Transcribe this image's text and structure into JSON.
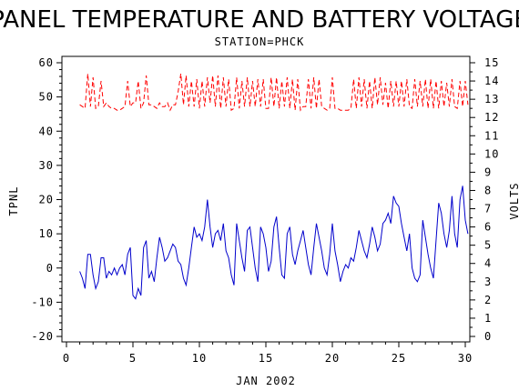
{
  "chart_data": {
    "type": "line",
    "title": "PANEL TEMPERATURE AND BATTERY VOLTAGE",
    "subtitle": "STATION=PHCK",
    "xlabel": "JAN 2002",
    "ylabel_left": "TPNL",
    "ylabel_right": "VOLTS",
    "xlim": [
      0,
      30
    ],
    "ylim_left": [
      -20,
      60
    ],
    "ylim_right": [
      0,
      15
    ],
    "xticks": [
      0,
      5,
      10,
      15,
      20,
      25,
      30
    ],
    "yticks_left": [
      -20,
      -10,
      0,
      10,
      20,
      30,
      40,
      50,
      60
    ],
    "yticks_right": [
      0,
      1,
      2,
      3,
      4,
      5,
      6,
      7,
      8,
      9,
      10,
      11,
      12,
      13,
      14,
      15
    ],
    "grid": false,
    "series": [
      {
        "axis": "left",
        "color": "#0000cc",
        "dash": false,
        "points": [
          [
            1.0,
            -1
          ],
          [
            1.2,
            -3
          ],
          [
            1.4,
            -6
          ],
          [
            1.6,
            4
          ],
          [
            1.8,
            4
          ],
          [
            2.0,
            -2
          ],
          [
            2.2,
            -6
          ],
          [
            2.4,
            -4
          ],
          [
            2.6,
            3
          ],
          [
            2.8,
            3
          ],
          [
            3.0,
            -3
          ],
          [
            3.2,
            -1
          ],
          [
            3.4,
            -2
          ],
          [
            3.6,
            0
          ],
          [
            3.8,
            -2
          ],
          [
            4.0,
            0
          ],
          [
            4.2,
            1
          ],
          [
            4.4,
            -2
          ],
          [
            4.6,
            4
          ],
          [
            4.8,
            6
          ],
          [
            5.0,
            -8
          ],
          [
            5.2,
            -9
          ],
          [
            5.4,
            -6
          ],
          [
            5.6,
            -8
          ],
          [
            5.8,
            6
          ],
          [
            6.0,
            8
          ],
          [
            6.2,
            -3
          ],
          [
            6.4,
            -1
          ],
          [
            6.6,
            -4
          ],
          [
            6.8,
            3
          ],
          [
            7.0,
            9
          ],
          [
            7.2,
            6
          ],
          [
            7.4,
            2
          ],
          [
            7.6,
            3
          ],
          [
            7.8,
            5
          ],
          [
            8.0,
            7
          ],
          [
            8.2,
            6
          ],
          [
            8.4,
            2
          ],
          [
            8.6,
            1
          ],
          [
            8.8,
            -3
          ],
          [
            9.0,
            -5
          ],
          [
            9.2,
            0
          ],
          [
            9.4,
            6
          ],
          [
            9.6,
            12
          ],
          [
            9.8,
            9
          ],
          [
            10.0,
            10
          ],
          [
            10.2,
            8
          ],
          [
            10.4,
            12
          ],
          [
            10.6,
            20
          ],
          [
            10.8,
            12
          ],
          [
            11.0,
            6
          ],
          [
            11.2,
            10
          ],
          [
            11.4,
            11
          ],
          [
            11.6,
            8
          ],
          [
            11.8,
            13
          ],
          [
            12.0,
            5
          ],
          [
            12.2,
            3
          ],
          [
            12.4,
            -2
          ],
          [
            12.6,
            -5
          ],
          [
            12.8,
            13
          ],
          [
            13.0,
            8
          ],
          [
            13.2,
            3
          ],
          [
            13.4,
            -1
          ],
          [
            13.6,
            11
          ],
          [
            13.8,
            12
          ],
          [
            14.0,
            6
          ],
          [
            14.2,
            0
          ],
          [
            14.4,
            -4
          ],
          [
            14.6,
            12
          ],
          [
            14.8,
            10
          ],
          [
            15.0,
            6
          ],
          [
            15.2,
            -1
          ],
          [
            15.4,
            2
          ],
          [
            15.6,
            12
          ],
          [
            15.8,
            15
          ],
          [
            16.0,
            6
          ],
          [
            16.2,
            -2
          ],
          [
            16.4,
            -3
          ],
          [
            16.6,
            10
          ],
          [
            16.8,
            12
          ],
          [
            17.0,
            4
          ],
          [
            17.2,
            1
          ],
          [
            17.4,
            5
          ],
          [
            17.6,
            8
          ],
          [
            17.8,
            11
          ],
          [
            18.0,
            6
          ],
          [
            18.2,
            1
          ],
          [
            18.4,
            -2
          ],
          [
            18.6,
            6
          ],
          [
            18.8,
            13
          ],
          [
            19.0,
            9
          ],
          [
            19.2,
            5
          ],
          [
            19.4,
            0
          ],
          [
            19.6,
            -2
          ],
          [
            19.8,
            4
          ],
          [
            20.0,
            13
          ],
          [
            20.2,
            5
          ],
          [
            20.4,
            1
          ],
          [
            20.6,
            -4
          ],
          [
            20.8,
            -1
          ],
          [
            21.0,
            1
          ],
          [
            21.2,
            0
          ],
          [
            21.4,
            3
          ],
          [
            21.6,
            2
          ],
          [
            21.8,
            6
          ],
          [
            22.0,
            11
          ],
          [
            22.2,
            8
          ],
          [
            22.4,
            5
          ],
          [
            22.6,
            3
          ],
          [
            22.8,
            7
          ],
          [
            23.0,
            12
          ],
          [
            23.2,
            9
          ],
          [
            23.4,
            5
          ],
          [
            23.6,
            7
          ],
          [
            23.8,
            13
          ],
          [
            24.0,
            14
          ],
          [
            24.2,
            16
          ],
          [
            24.4,
            13
          ],
          [
            24.6,
            21
          ],
          [
            24.8,
            19
          ],
          [
            25.0,
            18
          ],
          [
            25.2,
            13
          ],
          [
            25.4,
            9
          ],
          [
            25.6,
            5
          ],
          [
            25.8,
            10
          ],
          [
            26.0,
            0
          ],
          [
            26.2,
            -3
          ],
          [
            26.4,
            -4
          ],
          [
            26.6,
            -2
          ],
          [
            26.8,
            14
          ],
          [
            27.0,
            9
          ],
          [
            27.2,
            4
          ],
          [
            27.4,
            0
          ],
          [
            27.6,
            -3
          ],
          [
            27.8,
            8
          ],
          [
            28.0,
            19
          ],
          [
            28.2,
            16
          ],
          [
            28.4,
            10
          ],
          [
            28.6,
            6
          ],
          [
            28.8,
            11
          ],
          [
            29.0,
            21
          ],
          [
            29.2,
            10
          ],
          [
            29.4,
            6
          ],
          [
            29.6,
            20
          ],
          [
            29.8,
            24
          ],
          [
            30.0,
            14
          ],
          [
            30.2,
            10
          ]
        ]
      },
      {
        "axis": "right",
        "color": "#ff0000",
        "dash": true,
        "points": [
          [
            1.0,
            12.7
          ],
          [
            1.2,
            12.6
          ],
          [
            1.4,
            12.5
          ],
          [
            1.6,
            14.4
          ],
          [
            1.8,
            12.6
          ],
          [
            2.0,
            14.2
          ],
          [
            2.2,
            12.5
          ],
          [
            2.4,
            12.6
          ],
          [
            2.6,
            14.0
          ],
          [
            2.8,
            12.6
          ],
          [
            3.0,
            12.8
          ],
          [
            3.2,
            12.6
          ],
          [
            3.4,
            12.5
          ],
          [
            3.6,
            12.5
          ],
          [
            3.8,
            12.4
          ],
          [
            4.0,
            12.4
          ],
          [
            4.2,
            12.5
          ],
          [
            4.4,
            12.6
          ],
          [
            4.6,
            14.0
          ],
          [
            4.8,
            12.6
          ],
          [
            5.0,
            12.8
          ],
          [
            5.2,
            12.8
          ],
          [
            5.4,
            14.0
          ],
          [
            5.6,
            12.5
          ],
          [
            5.8,
            12.8
          ],
          [
            6.0,
            14.3
          ],
          [
            6.2,
            12.7
          ],
          [
            6.4,
            12.7
          ],
          [
            6.6,
            12.6
          ],
          [
            6.8,
            12.5
          ],
          [
            7.0,
            12.8
          ],
          [
            7.2,
            12.6
          ],
          [
            7.4,
            12.6
          ],
          [
            7.6,
            12.8
          ],
          [
            7.8,
            12.4
          ],
          [
            8.0,
            12.7
          ],
          [
            8.2,
            12.7
          ],
          [
            8.4,
            13.4
          ],
          [
            8.6,
            14.4
          ],
          [
            8.8,
            12.7
          ],
          [
            9.0,
            14.3
          ],
          [
            9.2,
            12.6
          ],
          [
            9.4,
            14.0
          ],
          [
            9.6,
            12.6
          ],
          [
            9.8,
            14.1
          ],
          [
            10.0,
            12.5
          ],
          [
            10.2,
            14.0
          ],
          [
            10.4,
            12.6
          ],
          [
            10.6,
            14.2
          ],
          [
            10.8,
            12.8
          ],
          [
            11.0,
            14.3
          ],
          [
            11.2,
            12.6
          ],
          [
            11.4,
            14.3
          ],
          [
            11.6,
            12.5
          ],
          [
            11.8,
            14.2
          ],
          [
            12.0,
            12.6
          ],
          [
            12.2,
            14.1
          ],
          [
            12.4,
            12.4
          ],
          [
            12.6,
            12.5
          ],
          [
            12.8,
            14.2
          ],
          [
            13.0,
            12.5
          ],
          [
            13.2,
            14.0
          ],
          [
            13.4,
            12.6
          ],
          [
            13.6,
            14.2
          ],
          [
            13.8,
            12.6
          ],
          [
            14.0,
            14.0
          ],
          [
            14.2,
            12.6
          ],
          [
            14.4,
            14.1
          ],
          [
            14.6,
            12.6
          ],
          [
            14.8,
            14.1
          ],
          [
            15.0,
            12.5
          ],
          [
            15.2,
            12.5
          ],
          [
            15.4,
            14.2
          ],
          [
            15.6,
            12.6
          ],
          [
            15.8,
            14.2
          ],
          [
            16.0,
            12.5
          ],
          [
            16.2,
            14.0
          ],
          [
            16.4,
            12.6
          ],
          [
            16.6,
            14.2
          ],
          [
            16.8,
            12.5
          ],
          [
            17.0,
            14.1
          ],
          [
            17.2,
            12.4
          ],
          [
            17.4,
            14.1
          ],
          [
            17.6,
            12.4
          ],
          [
            17.8,
            12.6
          ],
          [
            18.0,
            12.6
          ],
          [
            18.2,
            14.1
          ],
          [
            18.4,
            12.5
          ],
          [
            18.6,
            14.2
          ],
          [
            18.8,
            12.5
          ],
          [
            19.0,
            14.1
          ],
          [
            19.2,
            12.6
          ],
          [
            19.4,
            12.5
          ],
          [
            19.6,
            12.4
          ],
          [
            19.8,
            12.5
          ],
          [
            20.0,
            14.2
          ],
          [
            20.2,
            12.5
          ],
          [
            20.4,
            12.5
          ],
          [
            20.6,
            12.4
          ],
          [
            20.8,
            12.4
          ],
          [
            21.0,
            12.4
          ],
          [
            21.2,
            12.4
          ],
          [
            21.4,
            12.5
          ],
          [
            21.6,
            14.1
          ],
          [
            21.8,
            12.5
          ],
          [
            22.0,
            14.2
          ],
          [
            22.2,
            12.6
          ],
          [
            22.4,
            14.1
          ],
          [
            22.6,
            12.5
          ],
          [
            22.8,
            14.0
          ],
          [
            23.0,
            12.5
          ],
          [
            23.2,
            14.2
          ],
          [
            23.4,
            12.7
          ],
          [
            23.6,
            14.2
          ],
          [
            23.8,
            12.7
          ],
          [
            24.0,
            13.9
          ],
          [
            24.2,
            12.5
          ],
          [
            24.4,
            14.0
          ],
          [
            24.6,
            12.6
          ],
          [
            24.8,
            14.0
          ],
          [
            25.0,
            12.6
          ],
          [
            25.2,
            14.0
          ],
          [
            25.4,
            12.6
          ],
          [
            25.6,
            14.1
          ],
          [
            25.8,
            12.6
          ],
          [
            26.0,
            12.5
          ],
          [
            26.2,
            14.1
          ],
          [
            26.4,
            12.6
          ],
          [
            26.6,
            14.0
          ],
          [
            26.8,
            12.6
          ],
          [
            27.0,
            14.1
          ],
          [
            27.2,
            12.5
          ],
          [
            27.4,
            14.1
          ],
          [
            27.6,
            12.5
          ],
          [
            27.8,
            14.0
          ],
          [
            28.0,
            12.5
          ],
          [
            28.2,
            14.0
          ],
          [
            28.4,
            12.6
          ],
          [
            28.6,
            13.9
          ],
          [
            28.8,
            12.6
          ],
          [
            29.0,
            14.1
          ],
          [
            29.2,
            12.6
          ],
          [
            29.4,
            12.5
          ],
          [
            29.6,
            14.0
          ],
          [
            29.8,
            12.6
          ],
          [
            30.0,
            14.0
          ],
          [
            30.2,
            12.7
          ]
        ]
      }
    ]
  }
}
